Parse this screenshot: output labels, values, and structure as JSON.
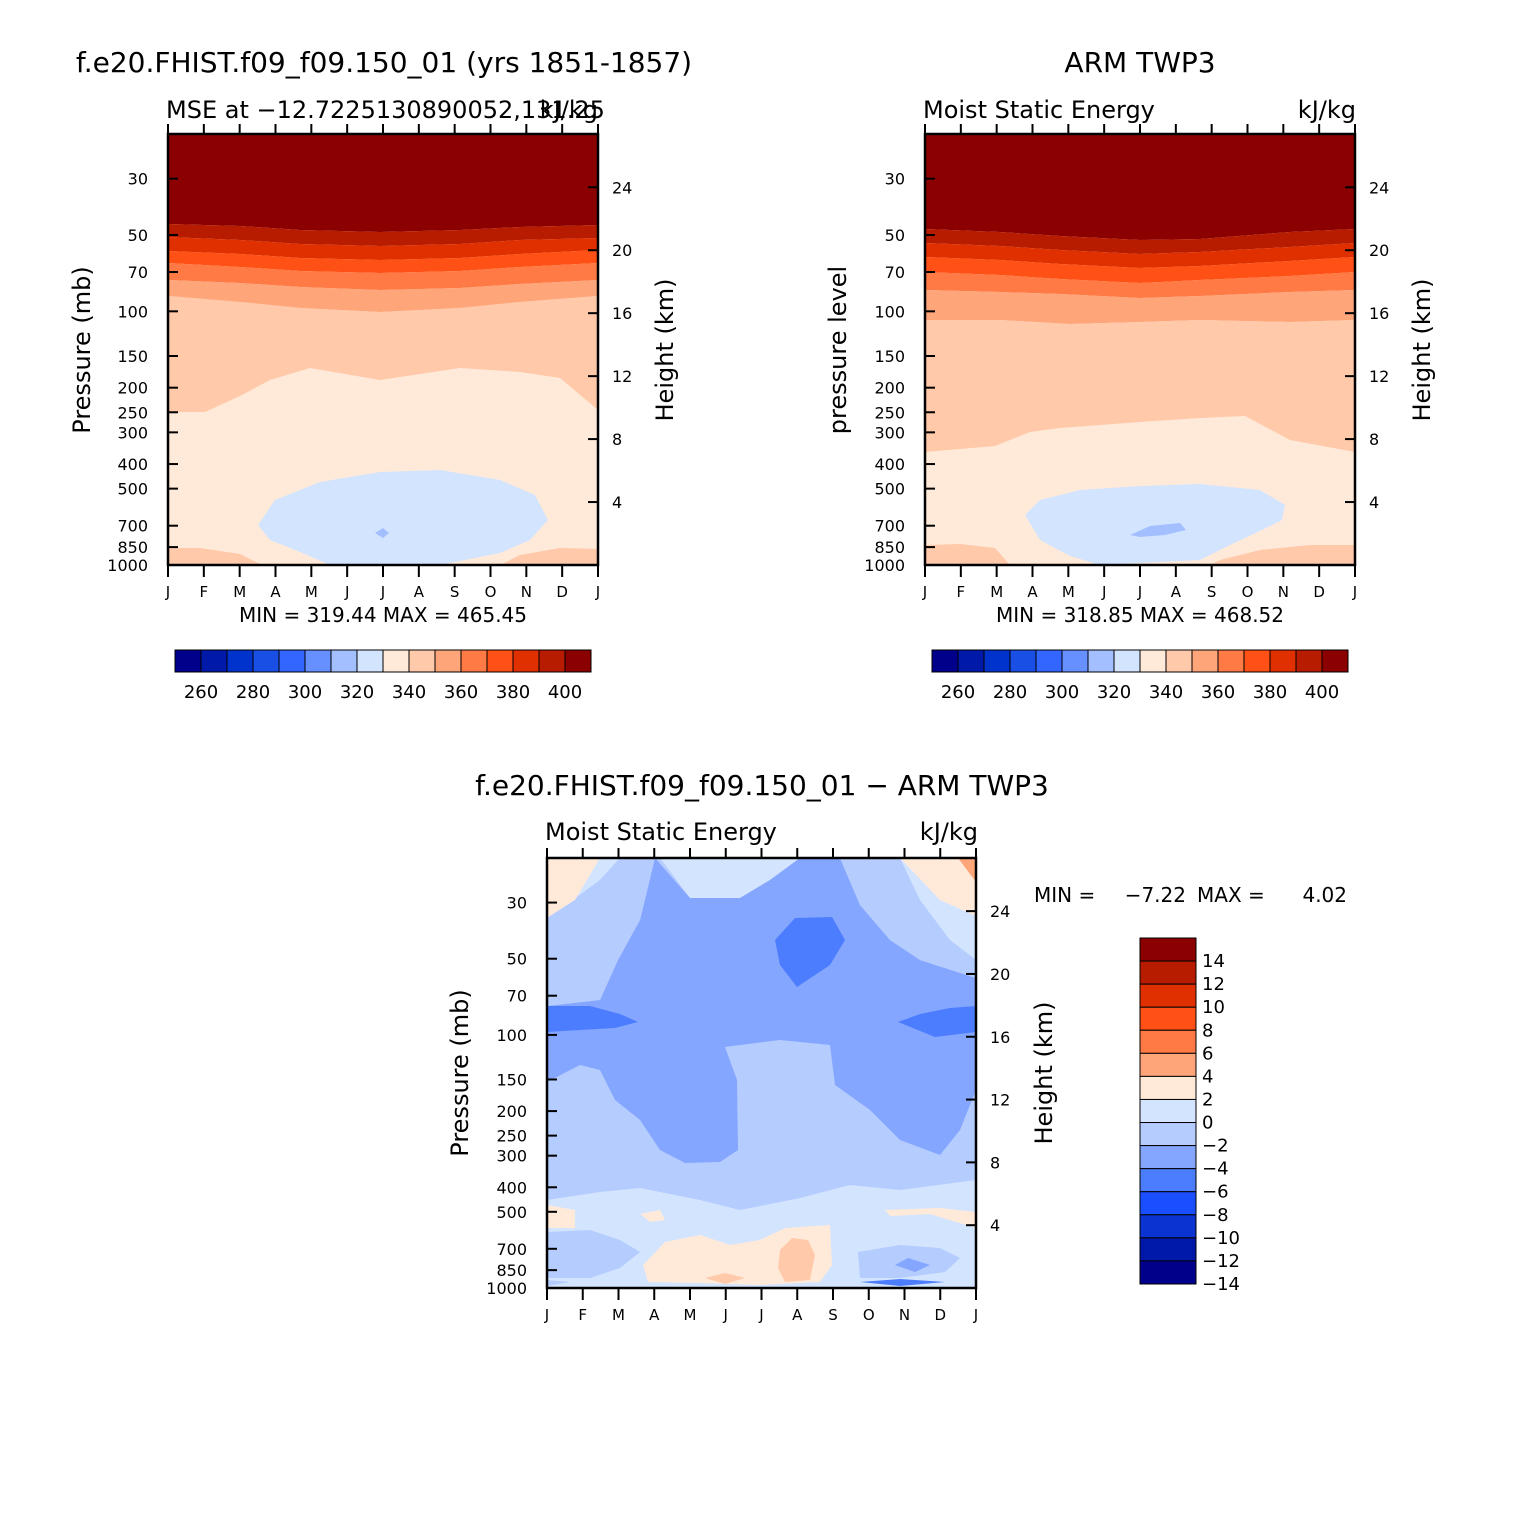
{
  "chart_data": [
    {
      "type": "heatmap",
      "title": "f.e20.FHIST.f09_f09.150_01 (yrs 1851-1857)",
      "subtitle_left": "MSE at −12.7225130890052,131.25",
      "subtitle_right": "kJ/kg",
      "ylabel": "Pressure (mb)",
      "ylabel_right": "Height (km)",
      "months": [
        "J",
        "F",
        "M",
        "A",
        "M",
        "J",
        "J",
        "A",
        "S",
        "O",
        "N",
        "D",
        "J"
      ],
      "pressure_ticks": [
        "30",
        "50",
        "70",
        "100",
        "150",
        "200",
        "250",
        "300",
        "400",
        "500",
        "700",
        "850",
        "1000"
      ],
      "height_ticks": [
        "24",
        "20",
        "16",
        "12",
        "8",
        "4"
      ],
      "stats": "MIN = 319.44  MAX = 465.45",
      "colorbar_labels": [
        "260",
        "280",
        "300",
        "320",
        "340",
        "360",
        "380",
        "400"
      ],
      "bands_by_pressure_top_to_bottom": [
        {
          "from_mb": 20,
          "to_mb": 57,
          "level": ">400"
        },
        {
          "from_mb": 57,
          "to_mb": 65,
          "level": "390-400"
        },
        {
          "from_mb": 65,
          "to_mb": 75,
          "level": "380-390"
        },
        {
          "from_mb": 75,
          "to_mb": 85,
          "level": "370-380"
        },
        {
          "from_mb": 85,
          "to_mb": 100,
          "level": "360-370"
        },
        {
          "from_mb": 100,
          "to_mb": 250,
          "level": "340-350"
        },
        {
          "from_mb": 250,
          "to_mb": 600,
          "level": "330-340"
        },
        {
          "from_mb": 600,
          "to_mb": 1000,
          "level": "320-330"
        }
      ],
      "min": 319.44,
      "max": 465.45
    },
    {
      "type": "heatmap",
      "title": "ARM TWP3",
      "subtitle_left": "Moist Static Energy",
      "subtitle_right": "kJ/kg",
      "ylabel": "pressure level",
      "ylabel_right": "Height (km)",
      "months": [
        "J",
        "F",
        "M",
        "A",
        "M",
        "J",
        "J",
        "A",
        "S",
        "O",
        "N",
        "D",
        "J"
      ],
      "pressure_ticks": [
        "30",
        "50",
        "70",
        "100",
        "150",
        "200",
        "250",
        "300",
        "400",
        "500",
        "700",
        "850",
        "1000"
      ],
      "height_ticks": [
        "24",
        "20",
        "16",
        "12",
        "8",
        "4"
      ],
      "stats": "MIN = 318.85  MAX = 468.52",
      "colorbar_labels": [
        "260",
        "280",
        "300",
        "320",
        "340",
        "360",
        "380",
        "400"
      ],
      "min": 318.85,
      "max": 468.52
    },
    {
      "type": "heatmap",
      "title": "f.e20.FHIST.f09_f09.150_01 − ARM TWP3",
      "subtitle_left": "Moist Static Energy",
      "subtitle_right": "kJ/kg",
      "ylabel": "Pressure (mb)",
      "ylabel_right": "Height (km)",
      "months": [
        "J",
        "F",
        "M",
        "A",
        "M",
        "J",
        "J",
        "A",
        "S",
        "O",
        "N",
        "D",
        "J"
      ],
      "pressure_ticks": [
        "30",
        "50",
        "70",
        "100",
        "150",
        "200",
        "250",
        "300",
        "400",
        "500",
        "700",
        "850",
        "1000"
      ],
      "height_ticks": [
        "24",
        "20",
        "16",
        "12",
        "8",
        "4"
      ],
      "stats_min_label": "MIN =",
      "stats_min_value": "−7.22",
      "stats_max_label": "MAX =",
      "stats_max_value": "4.02",
      "colorbar_labels": [
        "14",
        "12",
        "10",
        "8",
        "6",
        "4",
        "2",
        "0",
        "−2",
        "−4",
        "−6",
        "−8",
        "−10",
        "−12",
        "−14"
      ],
      "min": -7.22,
      "max": 4.02
    }
  ],
  "colors": {
    "abs_scale": [
      "#00008b",
      "#0019a8",
      "#0033cc",
      "#1a4fe6",
      "#3366ff",
      "#6690ff",
      "#a3bfff",
      "#d3e4ff",
      "#ffead9",
      "#ffc9aa",
      "#ffa57a",
      "#ff7a45",
      "#ff5015",
      "#e03000",
      "#b81c00",
      "#8b0000"
    ],
    "diff_scale": [
      "#8b0000",
      "#b81c00",
      "#e03000",
      "#ff5015",
      "#ff7a45",
      "#ffa57a",
      "#ffead9",
      "#d3e4ff",
      "#b5ccff",
      "#85a6ff",
      "#4d7dff",
      "#1a4fff",
      "#0b33d1",
      "#0019a8",
      "#00008b"
    ]
  }
}
